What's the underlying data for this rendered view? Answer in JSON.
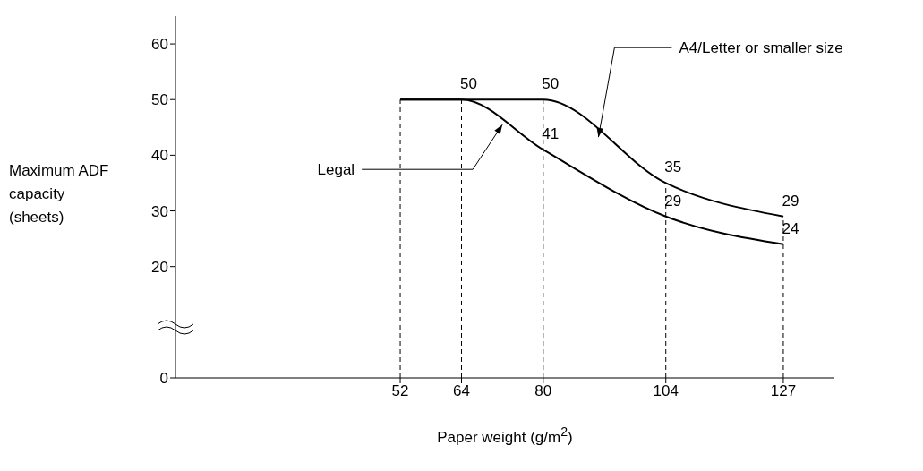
{
  "chart_data": {
    "type": "line",
    "xlabel": "Paper weight (g/m$^{2}$)",
    "ylabel": "Maximum ADF capacity (sheets)",
    "x": [
      52,
      64,
      80,
      104,
      127
    ],
    "series": [
      {
        "name": "A4/Letter or smaller size",
        "color": "#000000",
        "values": [
          50,
          50,
          50,
          35,
          29
        ],
        "value_labels": [
          null,
          null,
          "50",
          "35",
          "29"
        ]
      },
      {
        "name": "Legal",
        "color": "#000000",
        "values": [
          50,
          50,
          41,
          29,
          24
        ],
        "value_labels": [
          null,
          "50",
          "41",
          "29",
          "24"
        ]
      }
    ],
    "xlim": [
      8,
      137
    ],
    "xticks": [
      52,
      64,
      80,
      104,
      127
    ],
    "ylim": [
      0,
      65
    ],
    "yticks": [
      0,
      20,
      30,
      40,
      50,
      60
    ],
    "ref_lines": [
      {
        "axis": "x",
        "value": 52,
        "line_style": "dashed",
        "color": "#000000"
      },
      {
        "axis": "x",
        "value": 64,
        "line_style": "dashed",
        "color": "#000000"
      },
      {
        "axis": "x",
        "value": 80,
        "line_style": "dashed",
        "color": "#000000"
      },
      {
        "axis": "x",
        "value": 104,
        "line_style": "dashed",
        "color": "#000000"
      },
      {
        "axis": "x",
        "value": 127,
        "line_style": "dashed",
        "color": "#000000"
      }
    ],
    "grid": false,
    "legend": false,
    "marker": "none",
    "line_style": "solid"
  }
}
